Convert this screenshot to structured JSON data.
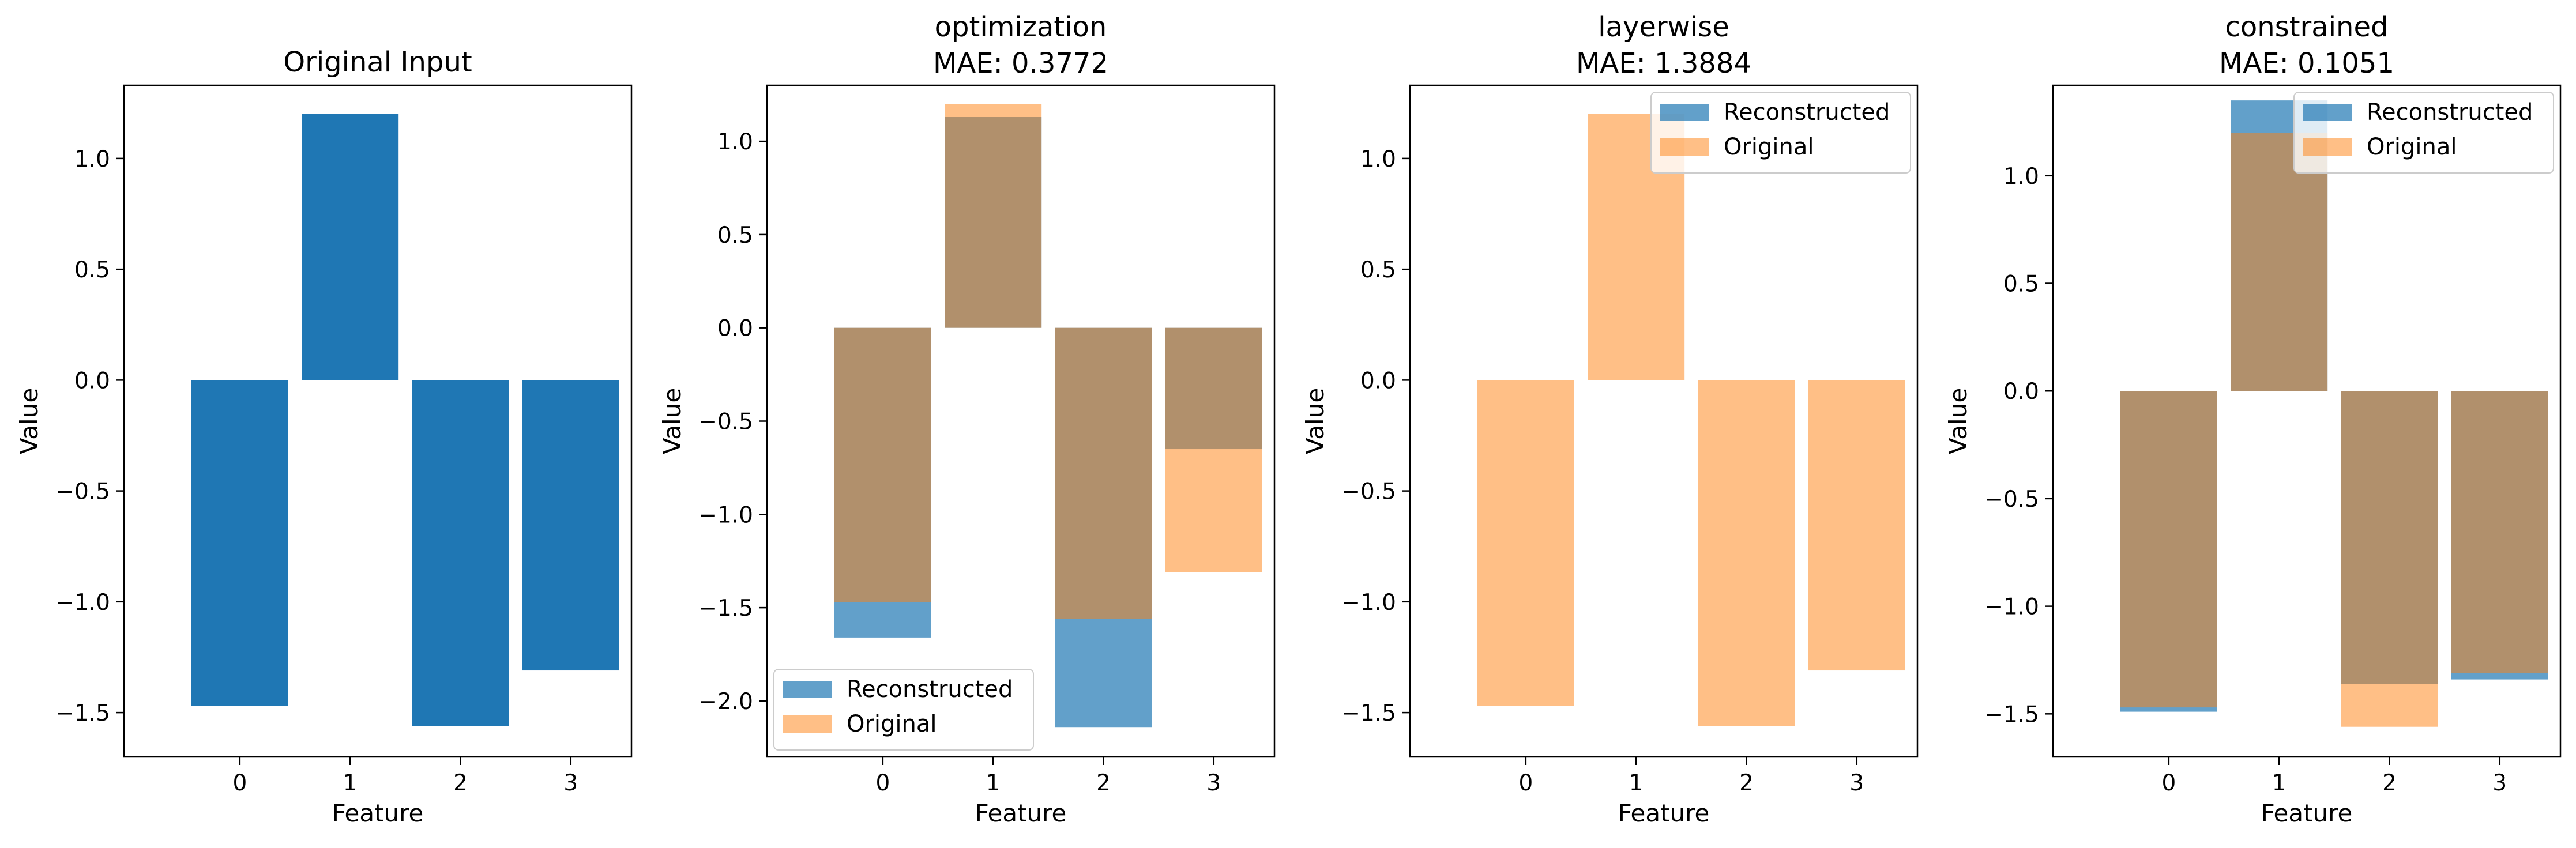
{
  "chart_data": [
    {
      "type": "bar",
      "title": [
        "Original Input"
      ],
      "xlabel": "Feature",
      "ylabel": "Value",
      "categories": [
        "0",
        "1",
        "2",
        "3"
      ],
      "ylim": [
        -1.7,
        1.33
      ],
      "yticks": [
        1.0,
        0.5,
        0.0,
        -0.5,
        -1.0,
        -1.5
      ],
      "ytick_labels": [
        "1.0",
        "0.5",
        "0.0",
        "−0.5",
        "−1.0",
        "−1.5"
      ],
      "legend": null,
      "series": [
        {
          "values": [
            -1.47,
            1.2,
            -1.56,
            -1.31
          ],
          "color": "#1f77b4",
          "opacity": 1.0
        }
      ]
    },
    {
      "type": "bar",
      "title": [
        "optimization",
        "MAE: 0.3772"
      ],
      "xlabel": "Feature",
      "ylabel": "Value",
      "categories": [
        "0",
        "1",
        "2",
        "3"
      ],
      "ylim": [
        -2.3,
        1.3
      ],
      "yticks": [
        1.0,
        0.5,
        0.0,
        -0.5,
        -1.0,
        -1.5,
        -2.0
      ],
      "ytick_labels": [
        "1.0",
        "0.5",
        "0.0",
        "−0.5",
        "−1.0",
        "−1.5",
        "−2.0"
      ],
      "legend": "lower-left",
      "series": [
        {
          "name": "Reconstructed",
          "values": [
            -1.66,
            1.13,
            -2.14,
            -0.65
          ],
          "color": "#1f77b4",
          "opacity": 0.7
        },
        {
          "name": "Original",
          "values": [
            -1.47,
            1.2,
            -1.56,
            -1.31
          ],
          "color": "#ff7f0e",
          "opacity": 0.5
        }
      ]
    },
    {
      "type": "bar",
      "title": [
        "layerwise",
        "MAE: 1.3884"
      ],
      "xlabel": "Feature",
      "ylabel": "Value",
      "categories": [
        "0",
        "1",
        "2",
        "3"
      ],
      "ylim": [
        -1.7,
        1.33
      ],
      "yticks": [
        1.0,
        0.5,
        0.0,
        -0.5,
        -1.0,
        -1.5
      ],
      "ytick_labels": [
        "1.0",
        "0.5",
        "0.0",
        "−0.5",
        "−1.0",
        "−1.5"
      ],
      "legend": "top-right",
      "series": [
        {
          "name": "Reconstructed",
          "values": [
            0.0,
            0.0,
            0.0,
            0.0
          ],
          "color": "#1f77b4",
          "opacity": 0.7
        },
        {
          "name": "Original",
          "values": [
            -1.47,
            1.2,
            -1.56,
            -1.31
          ],
          "color": "#ff7f0e",
          "opacity": 0.5
        }
      ]
    },
    {
      "type": "bar",
      "title": [
        "constrained",
        "MAE: 0.1051"
      ],
      "xlabel": "Feature",
      "ylabel": "Value",
      "categories": [
        "0",
        "1",
        "2",
        "3"
      ],
      "ylim": [
        -1.7,
        1.42
      ],
      "yticks": [
        1.0,
        0.5,
        0.0,
        -0.5,
        -1.0,
        -1.5
      ],
      "ytick_labels": [
        "1.0",
        "0.5",
        "0.0",
        "−0.5",
        "−1.0",
        "−1.5"
      ],
      "legend": "top-right",
      "series": [
        {
          "name": "Reconstructed",
          "values": [
            -1.49,
            1.35,
            -1.36,
            -1.34
          ],
          "color": "#1f77b4",
          "opacity": 0.7
        },
        {
          "name": "Original",
          "values": [
            -1.47,
            1.2,
            -1.56,
            -1.31
          ],
          "color": "#ff7f0e",
          "opacity": 0.5
        }
      ]
    }
  ]
}
